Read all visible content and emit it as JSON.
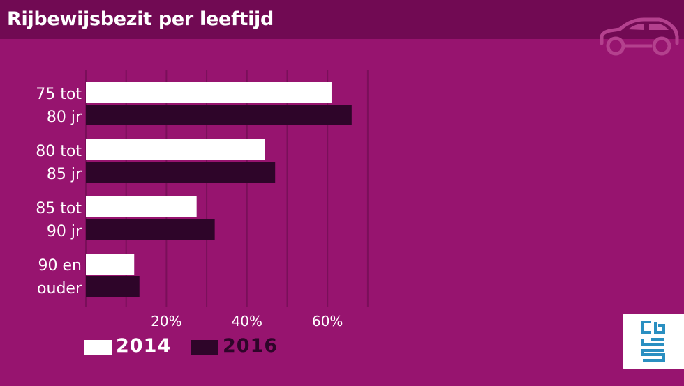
{
  "header": {
    "title": "Rijbewijsbezit per leeftijd"
  },
  "icons": {
    "car": "car-icon",
    "logo": "cbs-logo-icon"
  },
  "colors": {
    "background": "#97146f",
    "header_bg": "#710a53",
    "bar_2014": "#ffffff",
    "bar_2016": "#2e0529",
    "gridline": "#7a0f5a",
    "text": "#ffffff"
  },
  "chart_data": {
    "type": "bar",
    "orientation": "horizontal",
    "categories": [
      [
        "75 tot",
        "80 jr"
      ],
      [
        "80 tot",
        "85 jr"
      ],
      [
        "85 tot",
        "90 jr"
      ],
      [
        "90 en",
        "ouder"
      ]
    ],
    "series": [
      {
        "name": "2014",
        "values": [
          61,
          44.5,
          27.5,
          12
        ]
      },
      {
        "name": "2016",
        "values": [
          66,
          47,
          32,
          13.3
        ]
      }
    ],
    "x_ticks": [
      "20%",
      "40%",
      "60%"
    ],
    "xlim": [
      0,
      73
    ],
    "grid": true,
    "legend_position": "bottom-left"
  },
  "legend": [
    {
      "label": "2014",
      "color": "#ffffff",
      "text_color": "#ffffff"
    },
    {
      "label": "2016",
      "color": "#2e0529",
      "text_color": "#2e0529"
    }
  ]
}
